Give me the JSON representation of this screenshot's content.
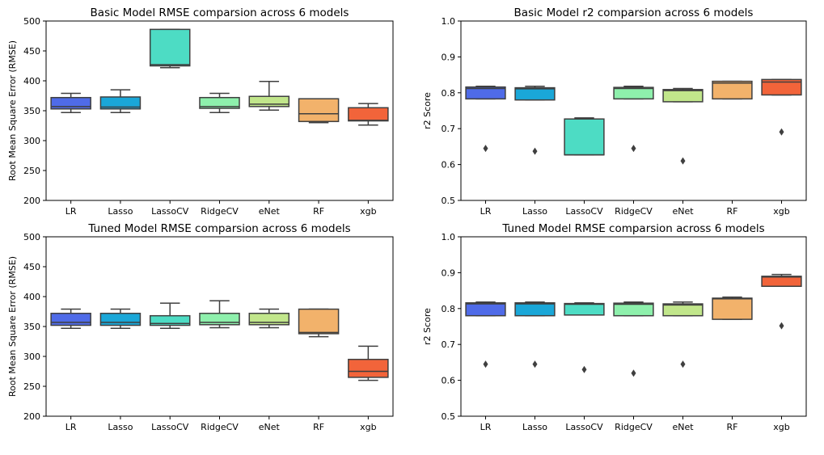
{
  "colors": {
    "LR": "#4f6be8",
    "Lasso": "#1aa7d8",
    "LassoCV": "#4ddcc4",
    "RidgeCV": "#8ef0ac",
    "eNet": "#c1e68b",
    "RF": "#f2b26b",
    "xgb": "#f2643a"
  },
  "chart_data": [
    {
      "type": "box",
      "title": "Basic Model RMSE comparsion across 6 models",
      "ylabel": "Root Mean Square Error (RMSE)",
      "ylim": [
        200,
        500
      ],
      "yticks": [
        "200",
        "250",
        "300",
        "350",
        "400",
        "450",
        "500"
      ],
      "categories": [
        "LR",
        "Lasso",
        "LassoCV",
        "RidgeCV",
        "eNet",
        "RF",
        "xgb"
      ],
      "boxes": [
        {
          "min": 347,
          "q1": 353,
          "median": 357,
          "q3": 372,
          "max": 379,
          "fliers": []
        },
        {
          "min": 347,
          "q1": 353,
          "median": 356,
          "q3": 373,
          "max": 385,
          "fliers": []
        },
        {
          "min": 422,
          "q1": 425,
          "median": 427,
          "q3": 486,
          "max": 486,
          "fliers": []
        },
        {
          "min": 347,
          "q1": 354,
          "median": 357,
          "q3": 372,
          "max": 379,
          "fliers": []
        },
        {
          "min": 351,
          "q1": 357,
          "median": 361,
          "q3": 374,
          "max": 399,
          "fliers": []
        },
        {
          "min": 330,
          "q1": 332,
          "median": 345,
          "q3": 370,
          "max": 370,
          "fliers": []
        },
        {
          "min": 326,
          "q1": 333,
          "median": 334,
          "q3": 355,
          "max": 362,
          "fliers": []
        }
      ]
    },
    {
      "type": "box",
      "title": "Basic Model r2 comparsion across 6 models",
      "ylabel": "r2 Score",
      "ylim": [
        0.5,
        1.0
      ],
      "yticks": [
        "0.5",
        "0.6",
        "0.7",
        "0.8",
        "0.9",
        "1.0"
      ],
      "categories": [
        "LR",
        "Lasso",
        "LassoCV",
        "RidgeCV",
        "eNet",
        "RF",
        "xgb"
      ],
      "boxes": [
        {
          "min": 0.783,
          "q1": 0.783,
          "median": 0.812,
          "q3": 0.816,
          "max": 0.818,
          "fliers": [
            0.645
          ]
        },
        {
          "min": 0.78,
          "q1": 0.78,
          "median": 0.811,
          "q3": 0.814,
          "max": 0.818,
          "fliers": [
            0.637
          ]
        },
        {
          "min": 0.627,
          "q1": 0.627,
          "median": 0.627,
          "q3": 0.727,
          "max": 0.73,
          "fliers": []
        },
        {
          "min": 0.783,
          "q1": 0.783,
          "median": 0.812,
          "q3": 0.815,
          "max": 0.818,
          "fliers": [
            0.645
          ]
        },
        {
          "min": 0.775,
          "q1": 0.775,
          "median": 0.806,
          "q3": 0.809,
          "max": 0.812,
          "fliers": [
            0.61
          ]
        },
        {
          "min": 0.783,
          "q1": 0.783,
          "median": 0.827,
          "q3": 0.832,
          "max": 0.832,
          "fliers": []
        },
        {
          "min": 0.794,
          "q1": 0.794,
          "median": 0.83,
          "q3": 0.837,
          "max": 0.837,
          "fliers": [
            0.691
          ]
        }
      ]
    },
    {
      "type": "box",
      "title": "Tuned Model RMSE comparsion across 6 models",
      "ylabel": "Root Mean Square Error (RMSE)",
      "ylim": [
        200,
        500
      ],
      "yticks": [
        "200",
        "250",
        "300",
        "350",
        "400",
        "450",
        "500"
      ],
      "categories": [
        "LR",
        "Lasso",
        "LassoCV",
        "RidgeCV",
        "eNet",
        "RF",
        "xgb"
      ],
      "boxes": [
        {
          "min": 347,
          "q1": 352,
          "median": 357,
          "q3": 372,
          "max": 379,
          "fliers": []
        },
        {
          "min": 347,
          "q1": 352,
          "median": 357,
          "q3": 372,
          "max": 379,
          "fliers": []
        },
        {
          "min": 347,
          "q1": 352,
          "median": 355,
          "q3": 368,
          "max": 389,
          "fliers": []
        },
        {
          "min": 348,
          "q1": 353,
          "median": 357,
          "q3": 372,
          "max": 393,
          "fliers": []
        },
        {
          "min": 348,
          "q1": 353,
          "median": 357,
          "q3": 372,
          "max": 379,
          "fliers": []
        },
        {
          "min": 333,
          "q1": 338,
          "median": 340,
          "q3": 379,
          "max": 379,
          "fliers": []
        },
        {
          "min": 260,
          "q1": 265,
          "median": 275,
          "q3": 295,
          "max": 317,
          "fliers": []
        }
      ]
    },
    {
      "type": "box",
      "title": "Tuned Model RMSE comparsion across 6 models",
      "ylabel": "r2 Score",
      "ylim": [
        0.5,
        1.0
      ],
      "yticks": [
        "0.5",
        "0.6",
        "0.7",
        "0.8",
        "0.9",
        "1.0"
      ],
      "categories": [
        "LR",
        "Lasso",
        "LassoCV",
        "RidgeCV",
        "eNet",
        "RF",
        "xgb"
      ],
      "boxes": [
        {
          "min": 0.78,
          "q1": 0.78,
          "median": 0.813,
          "q3": 0.816,
          "max": 0.818,
          "fliers": [
            0.645
          ]
        },
        {
          "min": 0.78,
          "q1": 0.78,
          "median": 0.813,
          "q3": 0.816,
          "max": 0.818,
          "fliers": [
            0.645
          ]
        },
        {
          "min": 0.782,
          "q1": 0.782,
          "median": 0.812,
          "q3": 0.814,
          "max": 0.816,
          "fliers": [
            0.63
          ]
        },
        {
          "min": 0.78,
          "q1": 0.78,
          "median": 0.812,
          "q3": 0.815,
          "max": 0.818,
          "fliers": [
            0.62
          ]
        },
        {
          "min": 0.78,
          "q1": 0.78,
          "median": 0.81,
          "q3": 0.813,
          "max": 0.818,
          "fliers": [
            0.645
          ]
        },
        {
          "min": 0.77,
          "q1": 0.77,
          "median": 0.827,
          "q3": 0.829,
          "max": 0.832,
          "fliers": []
        },
        {
          "min": 0.862,
          "q1": 0.862,
          "median": 0.888,
          "q3": 0.89,
          "max": 0.895,
          "fliers": [
            0.752
          ]
        }
      ]
    }
  ]
}
